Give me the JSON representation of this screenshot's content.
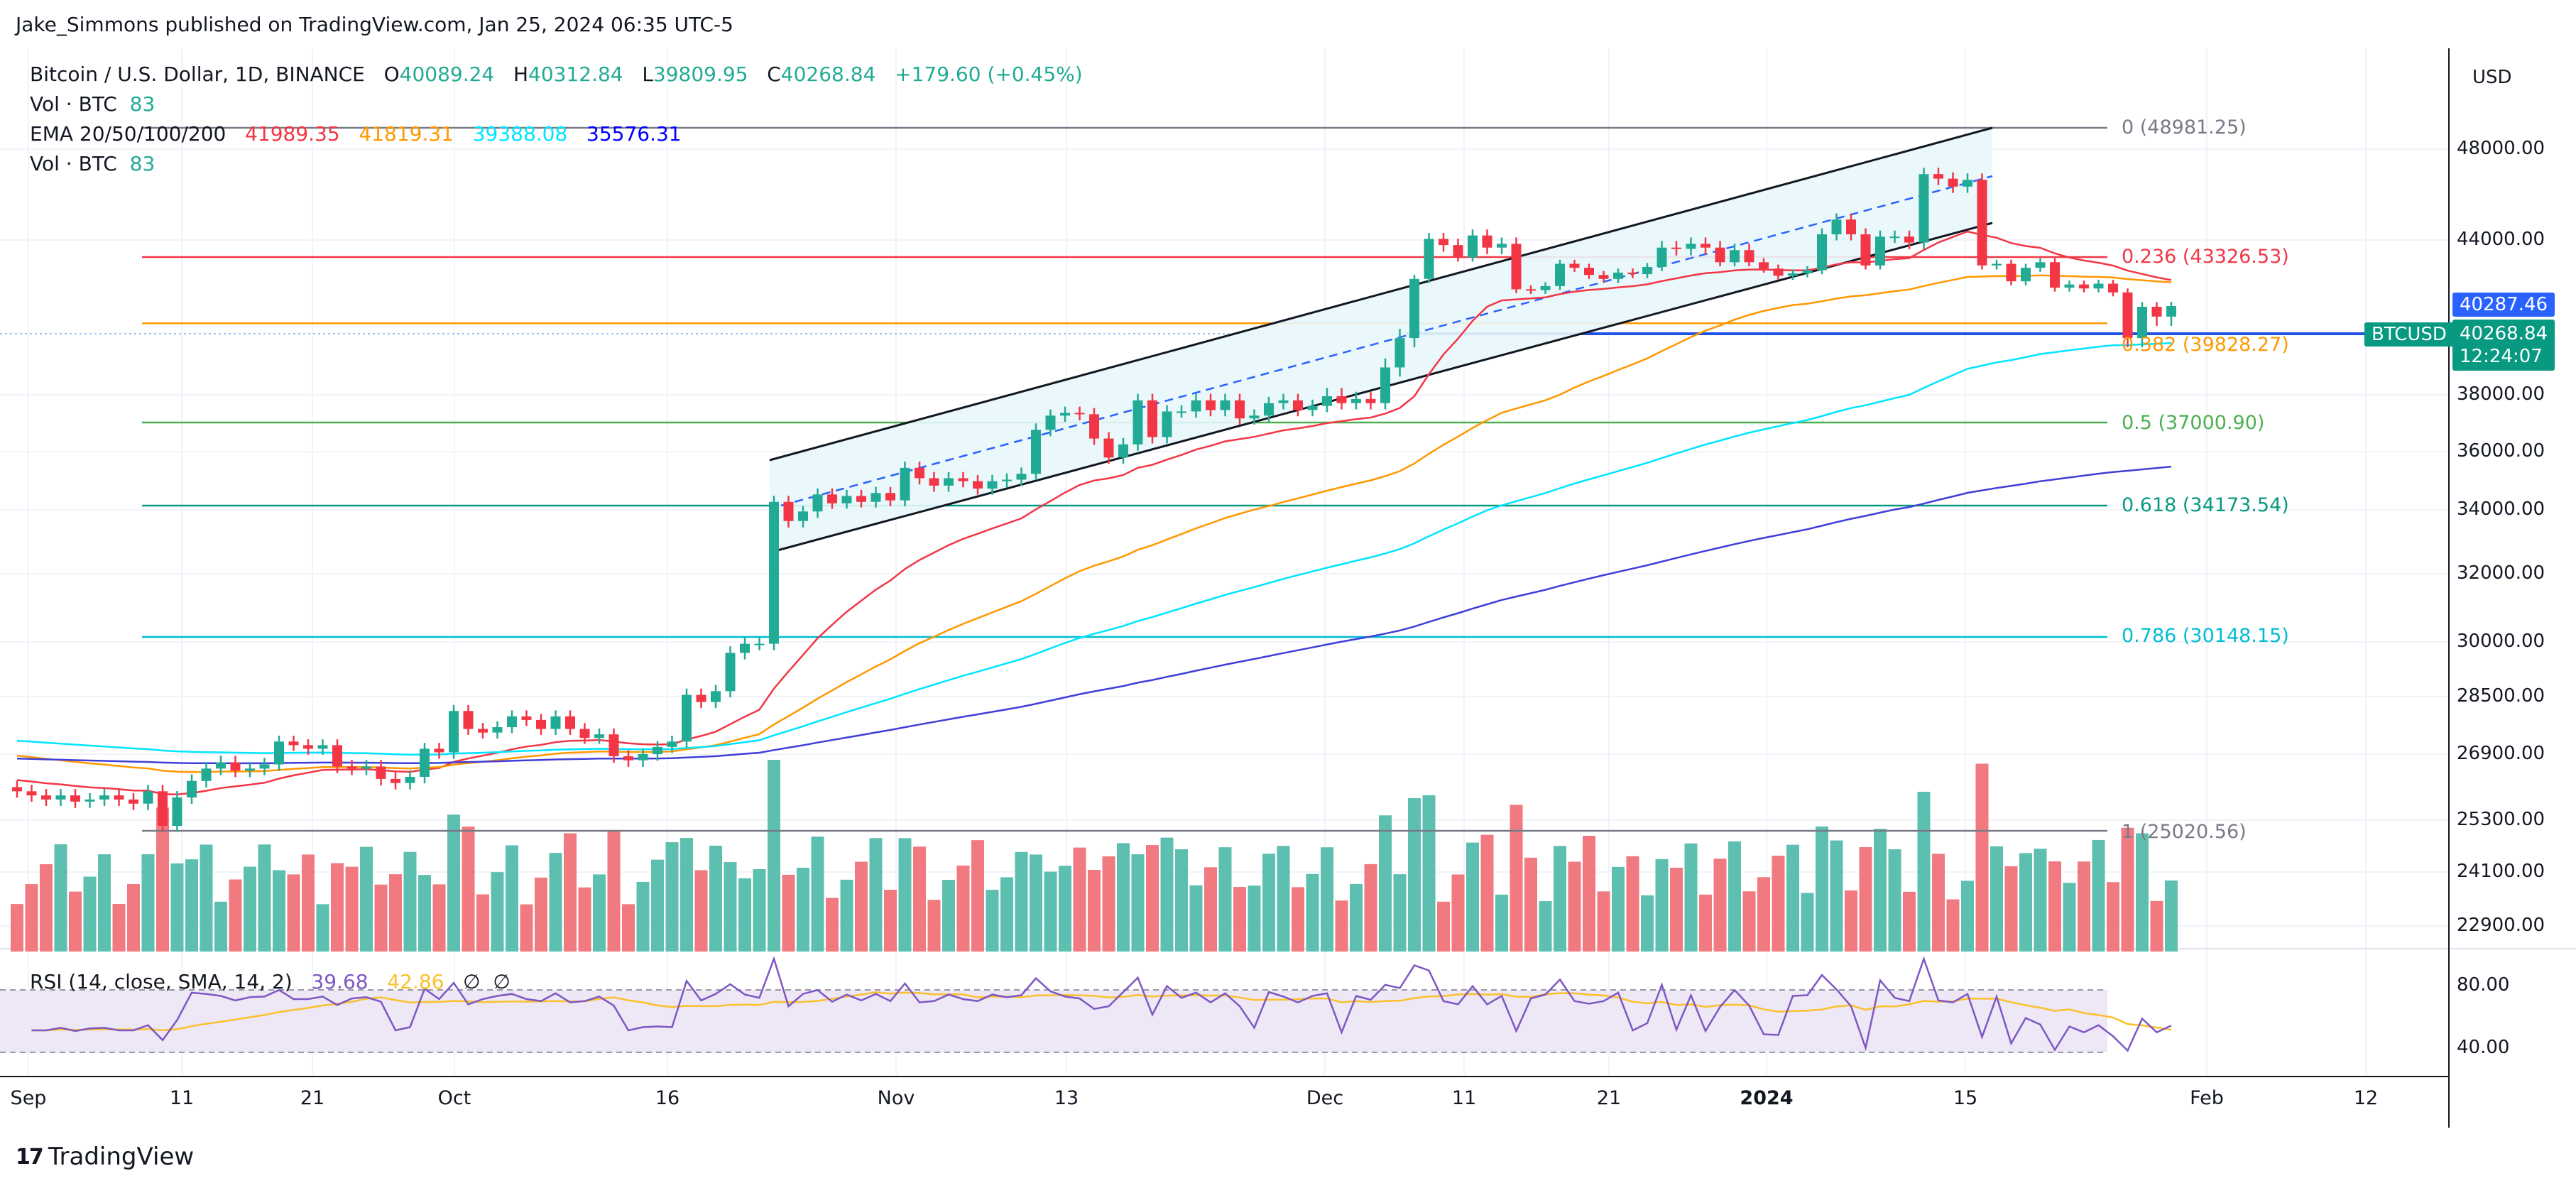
{
  "header": {
    "author": "Jake_Simmons published on TradingView.com, Jan 25, 2024 06:35 UTC-5",
    "symbol_line": "Bitcoin / U.S. Dollar, 1D, BINANCE",
    "ohlc": {
      "o_key": "O",
      "o_val": "40089.24",
      "h_key": "H",
      "h_val": "40312.84",
      "l_key": "L",
      "l_val": "39809.95",
      "c_key": "C",
      "c_val": "40268.84",
      "change": "+179.60 (+0.45%)"
    },
    "vol1": {
      "label": "Vol · BTC",
      "value": "83"
    },
    "ema": {
      "label": "EMA 20/50/100/200",
      "v20": "41989.35",
      "v50": "41819.31",
      "v100": "39388.08",
      "v200": "35576.31"
    },
    "vol2": {
      "label": "Vol · BTC",
      "value": "83"
    }
  },
  "rsi": {
    "label": "RSI (14, close, SMA, 14, 2)",
    "value": "39.68",
    "sma": "42.86",
    "icon1": "∅",
    "icon2": "∅"
  },
  "axis": {
    "currency": "USD",
    "ticks": [
      {
        "label": "48000.00"
      },
      {
        "label": "44000.00"
      },
      {
        "label": "38000.00"
      },
      {
        "label": "36000.00"
      },
      {
        "label": "34000.00"
      },
      {
        "label": "32000.00"
      },
      {
        "label": "30000.00"
      },
      {
        "label": "28500.00"
      },
      {
        "label": "26900.00"
      },
      {
        "label": "25300.00"
      },
      {
        "label": "24100.00"
      },
      {
        "label": "22900.00"
      }
    ],
    "rsi_ticks": [
      "80.00",
      "40.00"
    ],
    "last_price": "40287.46",
    "btc_price": "40268.84",
    "countdown": "12:24:07",
    "symbol_tag": "BTCUSD"
  },
  "fib_levels": [
    {
      "label": "0 (48981.25)",
      "color": "#787b86"
    },
    {
      "label": "0.236 (43326.53)",
      "color": "#f23645"
    },
    {
      "label": "0.382 (39828.27)",
      "color": "#ff9800"
    },
    {
      "label": "0.5 (37000.90)",
      "color": "#4caf50"
    },
    {
      "label": "0.618 (34173.54)",
      "color": "#089981"
    },
    {
      "label": "0.786 (30148.15)",
      "color": "#00bcd4"
    },
    {
      "label": "1 (25020.56)",
      "color": "#787b86"
    }
  ],
  "x_labels": [
    "Sep",
    "11",
    "21",
    "Oct",
    "16",
    "Nov",
    "13",
    "Dec",
    "11",
    "21",
    "2024",
    "15",
    "Feb",
    "12"
  ],
  "brand": "TradingView",
  "chart_data": {
    "type": "candlestick",
    "symbol": "BTCUSD",
    "interval": "1D",
    "x_range": [
      "2023-09-01",
      "2024-01-25"
    ],
    "y_range": [
      22000,
      50000
    ],
    "grid": true,
    "closes": [
      26000,
      25900,
      25800,
      25900,
      25750,
      25800,
      25900,
      25800,
      25700,
      26000,
      25150,
      25850,
      26250,
      26550,
      26700,
      26500,
      26550,
      26650,
      27250,
      27150,
      27050,
      27150,
      26600,
      26550,
      26600,
      26300,
      26200,
      26350,
      27050,
      26950,
      28100,
      27600,
      27500,
      27650,
      27950,
      27850,
      27600,
      27950,
      27600,
      27350,
      27450,
      26850,
      26750,
      26900,
      27100,
      27250,
      28550,
      28350,
      28650,
      29700,
      29950,
      29950,
      34300,
      33650,
      33950,
      34550,
      34250,
      34500,
      34300,
      34600,
      34350,
      35450,
      35100,
      34850,
      35100,
      35000,
      34750,
      35000,
      35050,
      35250,
      36750,
      37250,
      37350,
      37300,
      36450,
      35800,
      36250,
      37800,
      36500,
      37400,
      37400,
      37800,
      37450,
      37800,
      37150,
      37250,
      37700,
      37800,
      37450,
      37600,
      37950,
      37700,
      37850,
      37700,
      38700,
      39450,
      41950,
      44050,
      43800,
      43300,
      44200,
      43700,
      43850,
      41300,
      41250,
      41500,
      42900,
      42650,
      42200,
      41950,
      42350,
      42250,
      42700,
      43700,
      43650,
      43850,
      43700,
      43000,
      43600,
      43000,
      42600,
      42150,
      42300,
      42500,
      44250,
      44900,
      44250,
      42800,
      44150,
      44150,
      43900,
      46900,
      46700,
      46350,
      46650,
      42800,
      42900,
      41800,
      42650,
      43000,
      41400,
      41600,
      41350,
      41650,
      41100,
      39450,
      40250,
      40000,
      40268.84
    ],
    "ema": {
      "ema20": 41989.35,
      "ema50": 41819.31,
      "ema100": 39388.08,
      "ema200": 35576.31
    },
    "rsi": {
      "value": 39.68,
      "sma": 42.86,
      "levels": [
        80,
        40
      ]
    },
    "fibonacci": [
      {
        "ratio": 0,
        "price": 48981.25
      },
      {
        "ratio": 0.236,
        "price": 43326.53
      },
      {
        "ratio": 0.382,
        "price": 39828.27
      },
      {
        "ratio": 0.5,
        "price": 37000.9
      },
      {
        "ratio": 0.618,
        "price": 34173.54
      },
      {
        "ratio": 0.786,
        "price": 30148.15
      },
      {
        "ratio": 1,
        "price": 25020.56
      }
    ],
    "last_price": 40268.84
  }
}
